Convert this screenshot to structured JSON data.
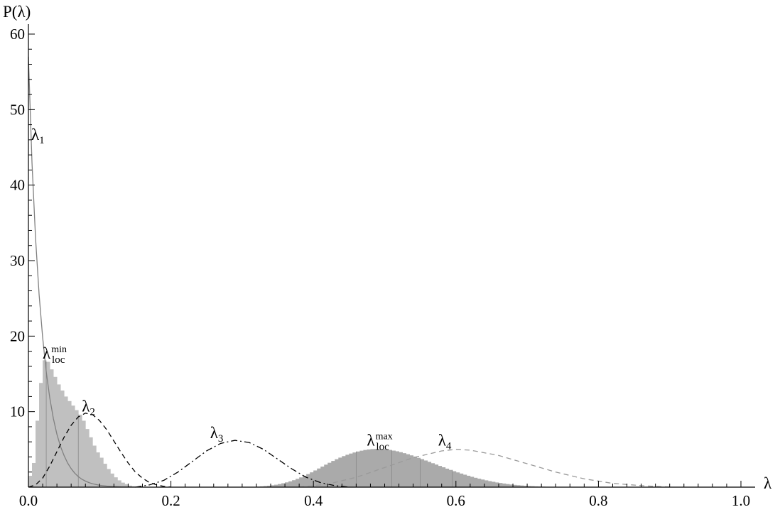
{
  "chart_data": {
    "type": "area",
    "xlabel": "λ",
    "ylabel": "P(λ)",
    "xlim": [
      0,
      1.0
    ],
    "ylim": [
      0,
      60
    ],
    "grid": false,
    "x_ticks": [
      0.0,
      0.2,
      0.4,
      0.6,
      0.8,
      1.0
    ],
    "x_tick_labels": [
      "0.0",
      "0.2",
      "0.4",
      "0.6",
      "0.8",
      "1.0"
    ],
    "y_ticks": [
      10,
      20,
      30,
      40,
      50,
      60
    ],
    "y_tick_labels": [
      "10",
      "20",
      "30",
      "40",
      "50",
      "60"
    ],
    "histograms": [
      {
        "name": "λ_loc^min",
        "color": "#c0c0c0",
        "bin_width": 0.005,
        "bin_start": 0.0,
        "values": [
          1.5,
          3.2,
          8.8,
          13.8,
          16.8,
          16.6,
          15.6,
          14.6,
          13.6,
          12.8,
          12.0,
          11.4,
          10.8,
          10.2,
          9.6,
          8.8,
          7.7,
          6.6,
          5.5,
          4.6,
          3.9,
          3.1,
          2.4,
          1.8,
          1.3,
          0.9,
          0.6,
          0.4,
          0.2,
          0.1
        ]
      },
      {
        "name": "λ_loc^max",
        "color": "#aaaaaa",
        "bin_width": 0.005,
        "bin_start": 0.3,
        "values": [
          0.01,
          0.02,
          0.03,
          0.05,
          0.07,
          0.1,
          0.14,
          0.19,
          0.25,
          0.32,
          0.41,
          0.51,
          0.63,
          0.77,
          0.92,
          1.1,
          1.29,
          1.5,
          1.73,
          1.96,
          2.21,
          2.47,
          2.72,
          2.98,
          3.23,
          3.47,
          3.7,
          3.91,
          4.11,
          4.29,
          4.45,
          4.59,
          4.72,
          4.83,
          4.92,
          4.99,
          5.04,
          5.06,
          5.06,
          5.04,
          4.99,
          4.93,
          4.84,
          4.75,
          4.63,
          4.5,
          4.36,
          4.21,
          4.05,
          3.88,
          3.71,
          3.53,
          3.35,
          3.17,
          2.99,
          2.81,
          2.63,
          2.45,
          2.28,
          2.11,
          1.95,
          1.8,
          1.65,
          1.51,
          1.37,
          1.24,
          1.12,
          1.01,
          0.9,
          0.8,
          0.71,
          0.62,
          0.55,
          0.48,
          0.41,
          0.35,
          0.3,
          0.26,
          0.22,
          0.18,
          0.15,
          0.13,
          0.1,
          0.08,
          0.07,
          0.05,
          0.04,
          0.03,
          0.03,
          0.02,
          0.02,
          0.01
        ]
      }
    ],
    "histogram_inner_lines_x": [
      0.025,
      0.07,
      0.46,
      0.51,
      0.55,
      0.595
    ],
    "series": [
      {
        "name": "λ1",
        "style": "solid",
        "color": "#808080",
        "x": [
          0.0,
          0.005,
          0.01,
          0.015,
          0.02,
          0.025,
          0.03,
          0.035,
          0.04,
          0.045,
          0.05,
          0.055,
          0.06,
          0.065,
          0.07,
          0.075,
          0.08,
          0.085,
          0.09,
          0.1,
          0.11,
          0.12,
          0.13,
          0.15
        ],
        "y": [
          57.0,
          43.0,
          33.0,
          25.5,
          19.8,
          15.3,
          11.8,
          9.1,
          7.0,
          5.4,
          4.2,
          3.2,
          2.45,
          1.85,
          1.4,
          1.05,
          0.8,
          0.6,
          0.45,
          0.25,
          0.14,
          0.08,
          0.04,
          0.01
        ]
      },
      {
        "name": "λ2",
        "style": "dashed",
        "color": "#000000",
        "x": [
          0.0,
          0.01,
          0.02,
          0.03,
          0.04,
          0.05,
          0.06,
          0.07,
          0.08,
          0.09,
          0.1,
          0.11,
          0.12,
          0.13,
          0.14,
          0.15,
          0.16,
          0.17,
          0.18,
          0.19,
          0.2
        ],
        "y": [
          0.0,
          0.3,
          1.2,
          2.8,
          4.7,
          6.6,
          8.2,
          9.3,
          9.8,
          9.6,
          8.8,
          7.6,
          6.1,
          4.6,
          3.2,
          2.0,
          1.2,
          0.6,
          0.3,
          0.1,
          0.0
        ]
      },
      {
        "name": "λ3",
        "style": "dash-dot",
        "color": "#000000",
        "x": [
          0.15,
          0.17,
          0.19,
          0.21,
          0.23,
          0.25,
          0.27,
          0.29,
          0.31,
          0.33,
          0.35,
          0.37,
          0.39,
          0.41,
          0.43,
          0.45
        ],
        "y": [
          0.0,
          0.3,
          0.9,
          2.0,
          3.4,
          4.8,
          5.8,
          6.2,
          5.9,
          5.0,
          3.7,
          2.4,
          1.3,
          0.6,
          0.2,
          0.0
        ]
      },
      {
        "name": "λ4",
        "style": "dashed",
        "color": "#9a9a9a",
        "x": [
          0.38,
          0.42,
          0.46,
          0.5,
          0.54,
          0.58,
          0.6,
          0.62,
          0.66,
          0.7,
          0.74,
          0.78,
          0.82,
          0.86,
          0.9
        ],
        "y": [
          0.0,
          0.4,
          1.3,
          2.6,
          3.9,
          4.8,
          5.0,
          4.9,
          4.2,
          3.1,
          2.0,
          1.1,
          0.5,
          0.2,
          0.0
        ]
      }
    ],
    "annotations": [
      {
        "base": "λ",
        "sub": "1",
        "sup": "",
        "x": 0.004,
        "y": 46
      },
      {
        "base": "λ",
        "sub": "loc",
        "sup": "min",
        "x": 0.02,
        "y": 17
      },
      {
        "base": "λ",
        "sub": "2",
        "sup": "",
        "x": 0.075,
        "y": 10
      },
      {
        "base": "λ",
        "sub": "3",
        "sup": "",
        "x": 0.255,
        "y": 6.5
      },
      {
        "base": "λ",
        "sub": "loc",
        "sup": "max",
        "x": 0.475,
        "y": 5.5
      },
      {
        "base": "λ",
        "sub": "4",
        "sup": "",
        "x": 0.575,
        "y": 5.5
      }
    ]
  }
}
